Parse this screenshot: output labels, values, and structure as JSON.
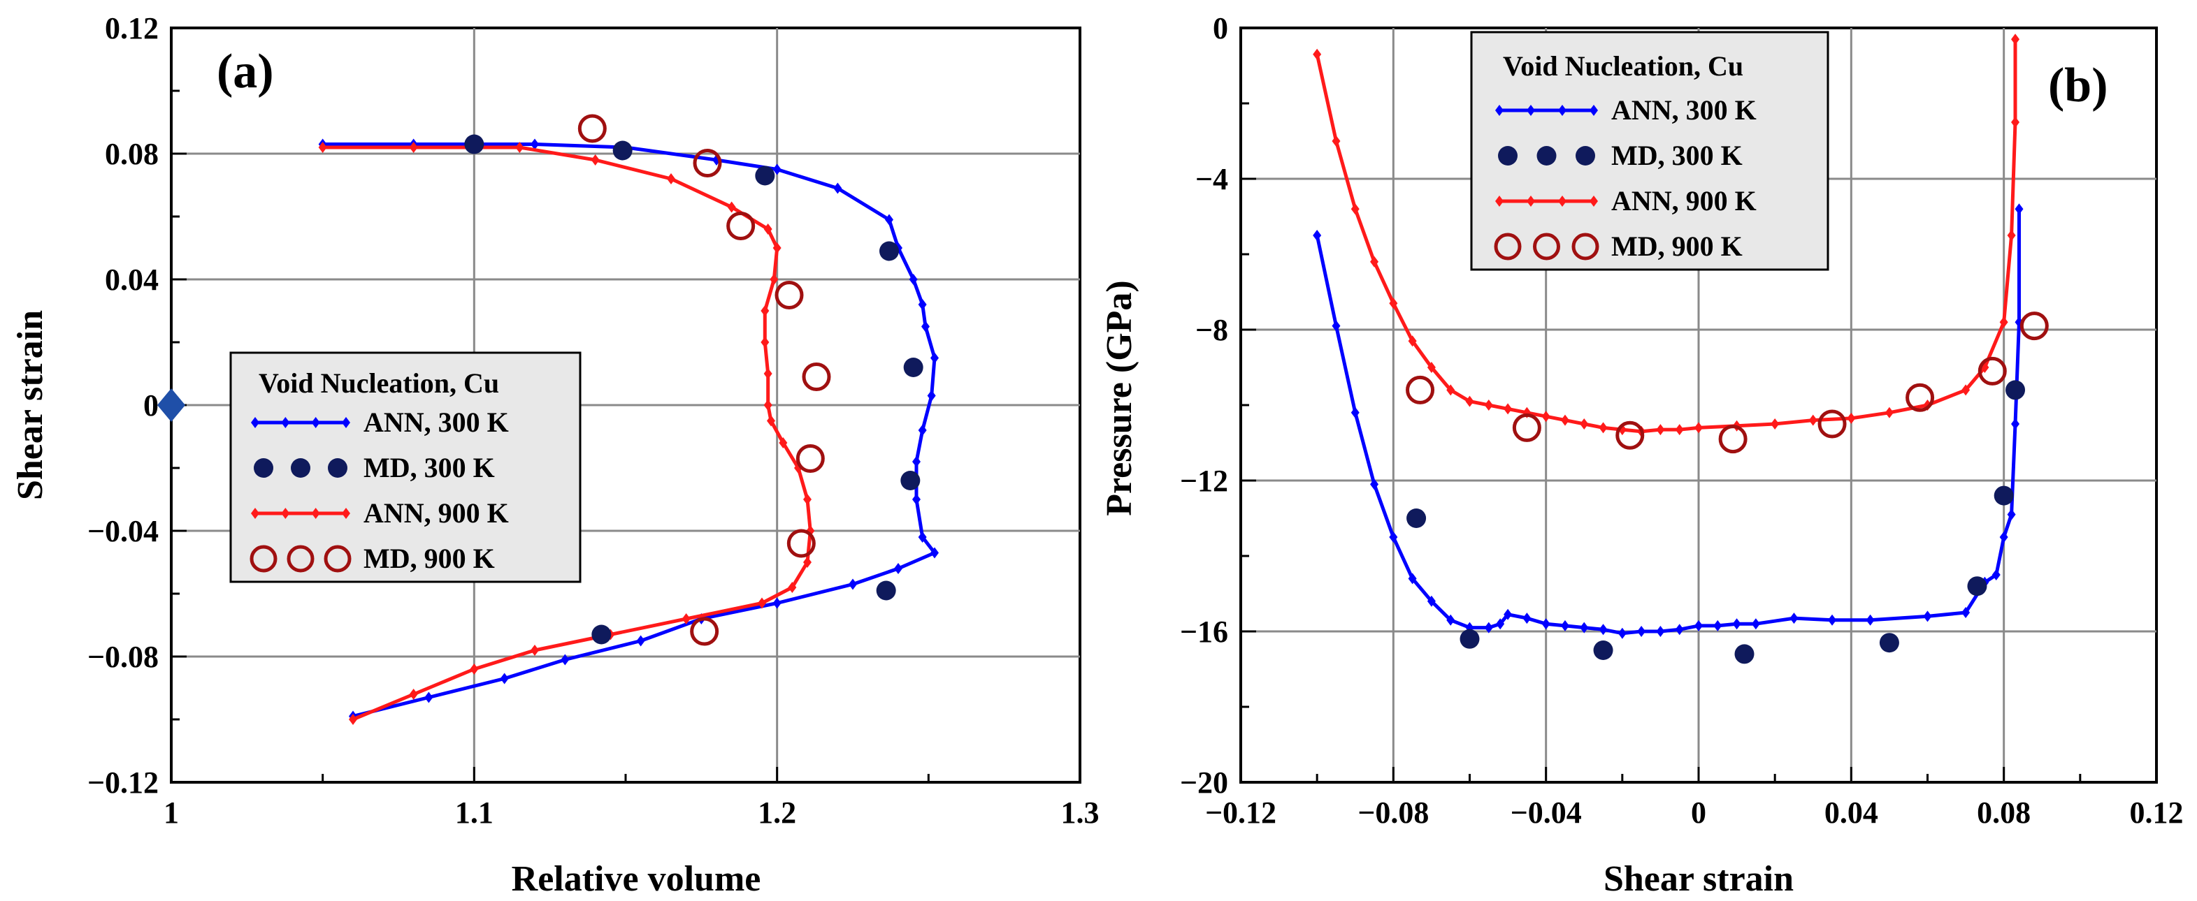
{
  "chart_data": [
    {
      "type": "line",
      "panel_label": "(a)",
      "xlabel": "Relative volume",
      "ylabel": "Shear strain",
      "xlim": [
        1.0,
        1.3
      ],
      "ylim": [
        -0.12,
        0.12
      ],
      "xticks": [
        1.0,
        1.1,
        1.2,
        1.3
      ],
      "xtick_labels": [
        "1",
        "1.1",
        "1.2",
        "1.3"
      ],
      "yticks": [
        -0.12,
        -0.08,
        -0.04,
        0.0,
        0.04,
        0.08,
        0.12
      ],
      "ytick_labels": [
        "−0.12",
        "−0.08",
        "−0.04",
        "0",
        "0.04",
        "0.08",
        "0.12"
      ],
      "grid": true,
      "legend_title": "Void Nucleation, Cu",
      "legend_position": "center-left",
      "marker_point": {
        "x": 1.0,
        "y": 0.0,
        "color": "#1f4fa8"
      },
      "series": [
        {
          "name": "ANN, 300 K",
          "kind": "line",
          "color": "#0000ff",
          "x": [
            1.05,
            1.08,
            1.1,
            1.12,
            1.15,
            1.18,
            1.2,
            1.22,
            1.237,
            1.24,
            1.245,
            1.248,
            1.249,
            1.252,
            1.251,
            1.248,
            1.246,
            1.246,
            1.248,
            1.252,
            1.24,
            1.225,
            1.2,
            1.175,
            1.155,
            1.13,
            1.11,
            1.085,
            1.06
          ],
          "y": [
            0.083,
            0.083,
            0.083,
            0.083,
            0.082,
            0.078,
            0.075,
            0.069,
            0.059,
            0.05,
            0.04,
            0.032,
            0.025,
            0.015,
            0.003,
            -0.008,
            -0.018,
            -0.03,
            -0.042,
            -0.047,
            -0.052,
            -0.057,
            -0.063,
            -0.068,
            -0.075,
            -0.081,
            -0.087,
            -0.093,
            -0.099
          ]
        },
        {
          "name": "MD, 300 K",
          "kind": "filled-markers",
          "color": "#0f1a5c",
          "x": [
            1.1,
            1.149,
            1.196,
            1.237,
            1.245,
            1.244,
            1.236,
            1.142
          ],
          "y": [
            0.083,
            0.081,
            0.073,
            0.049,
            0.012,
            -0.024,
            -0.059,
            -0.073
          ]
        },
        {
          "name": "ANN, 900 K",
          "kind": "line",
          "color": "#ff1a1a",
          "x": [
            1.05,
            1.08,
            1.1,
            1.115,
            1.14,
            1.165,
            1.185,
            1.197,
            1.2,
            1.199,
            1.196,
            1.196,
            1.197,
            1.197,
            1.198,
            1.202,
            1.207,
            1.21,
            1.211,
            1.21,
            1.205,
            1.195,
            1.17,
            1.145,
            1.12,
            1.1,
            1.08,
            1.06
          ],
          "y": [
            0.082,
            0.082,
            0.082,
            0.082,
            0.078,
            0.072,
            0.063,
            0.056,
            0.05,
            0.04,
            0.03,
            0.02,
            0.01,
            0.0,
            -0.005,
            -0.012,
            -0.02,
            -0.03,
            -0.04,
            -0.05,
            -0.058,
            -0.063,
            -0.068,
            -0.073,
            -0.078,
            -0.084,
            -0.092,
            -0.1
          ]
        },
        {
          "name": "MD, 900 K",
          "kind": "open-markers",
          "color": "#a01010",
          "x": [
            1.139,
            1.177,
            1.188,
            1.204,
            1.213,
            1.211,
            1.208,
            1.176
          ],
          "y": [
            0.088,
            0.077,
            0.057,
            0.035,
            0.009,
            -0.017,
            -0.044,
            -0.072
          ]
        }
      ]
    },
    {
      "type": "line",
      "panel_label": "(b)",
      "xlabel": "Shear strain",
      "ylabel": "Pressure (GPa)",
      "xlim": [
        -0.12,
        0.12
      ],
      "ylim": [
        -20,
        0
      ],
      "xticks": [
        -0.12,
        -0.08,
        -0.04,
        0.0,
        0.04,
        0.08,
        0.12
      ],
      "xtick_labels": [
        "−0.12",
        "−0.08",
        "−0.04",
        "0",
        "0.04",
        "0.08",
        "0.12"
      ],
      "yticks": [
        -20,
        -16,
        -12,
        -8,
        -4,
        0
      ],
      "ytick_labels": [
        "−20",
        "−16",
        "−12",
        "−8",
        "−4",
        "0"
      ],
      "grid": true,
      "legend_title": "Void Nucleation, Cu",
      "legend_position": "top-center",
      "series": [
        {
          "name": "ANN, 300 K",
          "kind": "line",
          "color": "#0000ff",
          "x": [
            -0.1,
            -0.095,
            -0.09,
            -0.085,
            -0.08,
            -0.075,
            -0.07,
            -0.065,
            -0.06,
            -0.055,
            -0.052,
            -0.05,
            -0.045,
            -0.04,
            -0.035,
            -0.03,
            -0.025,
            -0.02,
            -0.015,
            -0.01,
            -0.005,
            0.0,
            0.005,
            0.01,
            0.015,
            0.025,
            0.035,
            0.045,
            0.06,
            0.07,
            0.075,
            0.078,
            0.08,
            0.082,
            0.083,
            0.084,
            0.084
          ],
          "y": [
            -5.5,
            -7.9,
            -10.2,
            -12.1,
            -13.5,
            -14.6,
            -15.2,
            -15.7,
            -15.9,
            -15.9,
            -15.8,
            -15.55,
            -15.65,
            -15.8,
            -15.85,
            -15.9,
            -15.95,
            -16.05,
            -16.0,
            -16.0,
            -15.95,
            -15.85,
            -15.85,
            -15.8,
            -15.8,
            -15.65,
            -15.7,
            -15.7,
            -15.6,
            -15.5,
            -14.7,
            -14.5,
            -13.5,
            -12.9,
            -10.5,
            -7.8,
            -4.8
          ]
        },
        {
          "name": "MD, 300 K",
          "kind": "filled-markers",
          "color": "#0f1a5c",
          "x": [
            -0.074,
            -0.06,
            -0.025,
            0.012,
            0.05,
            0.073,
            0.08,
            0.083
          ],
          "y": [
            -13.0,
            -16.2,
            -16.5,
            -16.6,
            -16.3,
            -14.8,
            -12.4,
            -9.6
          ]
        },
        {
          "name": "ANN, 900 K",
          "kind": "line",
          "color": "#ff1a1a",
          "x": [
            -0.1,
            -0.095,
            -0.09,
            -0.085,
            -0.08,
            -0.075,
            -0.07,
            -0.065,
            -0.06,
            -0.055,
            -0.05,
            -0.045,
            -0.04,
            -0.035,
            -0.03,
            -0.025,
            -0.02,
            -0.015,
            -0.01,
            -0.005,
            0.0,
            0.01,
            0.02,
            0.03,
            0.04,
            0.05,
            0.06,
            0.07,
            0.075,
            0.08,
            0.082,
            0.083,
            0.083
          ],
          "y": [
            -0.7,
            -3.0,
            -4.8,
            -6.2,
            -7.3,
            -8.3,
            -9.0,
            -9.6,
            -9.9,
            -10.0,
            -10.1,
            -10.2,
            -10.3,
            -10.4,
            -10.5,
            -10.6,
            -10.65,
            -10.7,
            -10.65,
            -10.65,
            -10.6,
            -10.55,
            -10.5,
            -10.4,
            -10.35,
            -10.2,
            -10.0,
            -9.6,
            -9.0,
            -7.8,
            -5.5,
            -2.5,
            -0.3
          ]
        },
        {
          "name": "MD, 900 K",
          "kind": "open-markers",
          "color": "#a01010",
          "x": [
            -0.073,
            -0.045,
            -0.018,
            0.009,
            0.035,
            0.058,
            0.077,
            0.088
          ],
          "y": [
            -9.6,
            -10.6,
            -10.8,
            -10.9,
            -10.5,
            -9.8,
            -9.1,
            -7.9
          ]
        }
      ]
    }
  ]
}
